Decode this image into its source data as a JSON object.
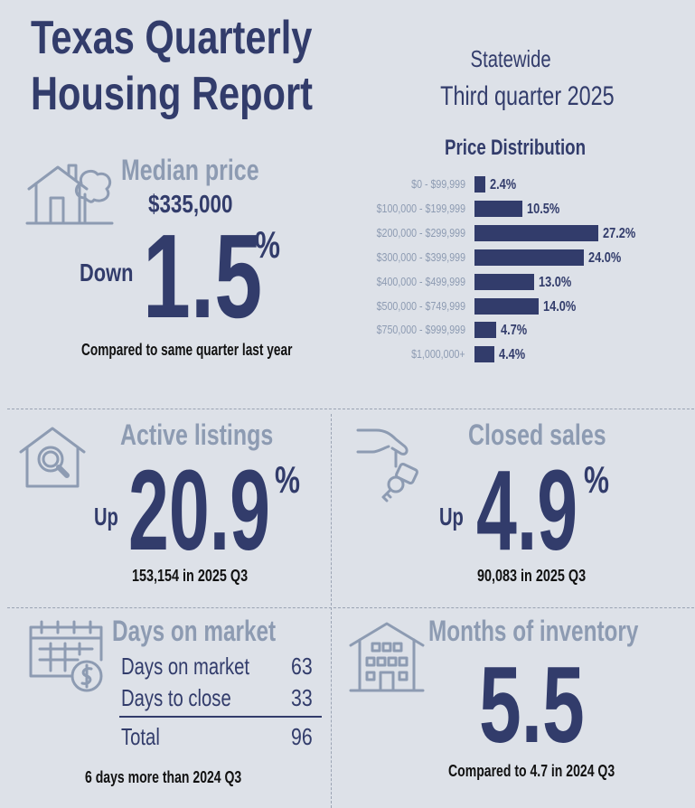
{
  "header": {
    "title_line1": "Texas Quarterly",
    "title_line2": "Housing Report",
    "region": "Statewide",
    "period": "Third quarter 2025"
  },
  "median_price": {
    "label": "Median price",
    "value": "$335,000",
    "direction": "Down",
    "change": "1.5",
    "unit": "%",
    "note": "Compared to same quarter last year",
    "icon": "house-tree-icon"
  },
  "price_distribution": {
    "title": "Price Distribution",
    "chart_data": {
      "type": "bar",
      "orientation": "horizontal",
      "categories": [
        "$0 - $99,999",
        "$100,000 - $199,999",
        "$200,000 - $299,999",
        "$300,000 - $399,999",
        "$400,000 - $499,999",
        "$500,000 - $749,999",
        "$750,000 - $999,999",
        "$1,000,000+"
      ],
      "values": [
        2.4,
        10.5,
        27.2,
        24.0,
        13.0,
        14.0,
        4.7,
        4.4
      ],
      "value_labels": [
        "2.4%",
        "10.5%",
        "27.2%",
        "24.0%",
        "13.0%",
        "14.0%",
        "4.7%",
        "4.4%"
      ],
      "bar_color": "#323c6b"
    }
  },
  "active_listings": {
    "label": "Active listings",
    "direction": "Up",
    "change": "20.9",
    "unit": "%",
    "note": "153,154 in 2025 Q3",
    "icon": "house-search-icon"
  },
  "closed_sales": {
    "label": "Closed sales",
    "direction": "Up",
    "change": "4.9",
    "unit": "%",
    "note": "90,083 in 2025 Q3",
    "icon": "hand-keys-icon"
  },
  "days_on_market": {
    "label": "Days on market",
    "rows": [
      {
        "label": "Days on market",
        "value": "63"
      },
      {
        "label": "Days to close",
        "value": "33"
      }
    ],
    "total_label": "Total",
    "total_value": "96",
    "note": "6 days more than 2024 Q3",
    "icon": "calendar-dollar-icon"
  },
  "months_inventory": {
    "label": "Months of inventory",
    "value": "5.5",
    "note": "Compared to 4.7 in 2024 Q3",
    "icon": "apartment-building-icon"
  },
  "colors": {
    "navy": "#323c6b",
    "steel": "#8d9bb2",
    "background": "#dde1e8"
  }
}
